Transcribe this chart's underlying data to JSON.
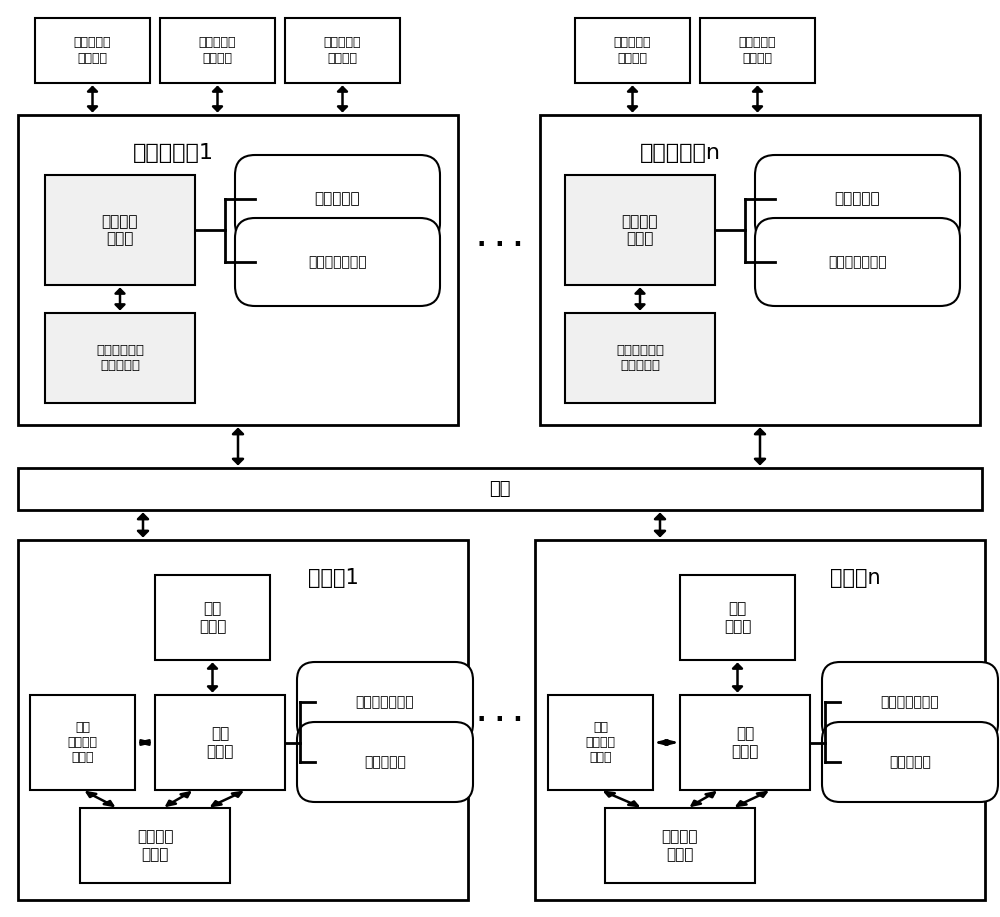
{
  "bg_color": "#ffffff",
  "border_color": "#000000",
  "font_color": "#000000",
  "figsize": [
    10.0,
    9.17
  ],
  "dpi": 100,
  "labels": {
    "remote_client": "远程集中控\n制客户端",
    "remote_server1": "远程服务端1",
    "remote_servern": "远程服务端n",
    "centralized_server": "远程集中\n服务器",
    "centralized_control_server": "集控服务端",
    "centralized_control_db": "集控服务数据库",
    "remote_video_server": "远程集中网络\n视频服务器",
    "network": "网络",
    "substation1": "变电站1",
    "substationn": "变电站n",
    "station_client": "站内\n客户端",
    "station_server": "站内\n服务器",
    "station_video_server": "站内\n网络视频\n服务器",
    "station_service_db": "站内服务数据库",
    "station_service_end": "站内服务端",
    "robot": "机器人和\n固定点",
    "dots": "· · ·"
  }
}
